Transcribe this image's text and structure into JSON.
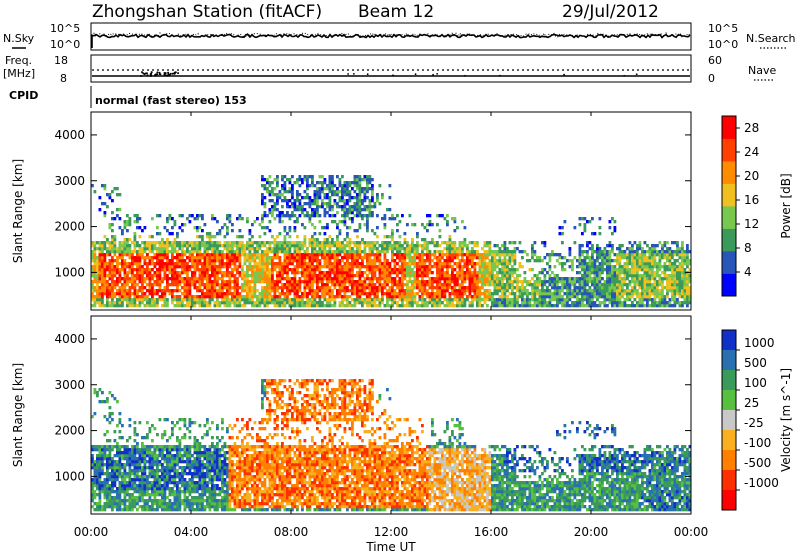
{
  "header": {
    "station_title": "Zhongshan Station (fitACF)",
    "beam_label": "Beam 12",
    "date": "29/Jul/2012"
  },
  "sky_panel": {
    "left_label": "N.Sky",
    "left_ticks": [
      "10^5",
      "10^0"
    ],
    "right_ticks": [
      "10^5",
      "10^0"
    ],
    "right_label": "N.Search"
  },
  "freq_panel": {
    "left_label_1": "Freq.",
    "left_label_2": "[MHz]",
    "left_ticks": [
      "18",
      "8"
    ],
    "right_ticks": [
      "60",
      "0"
    ],
    "right_label": "Nave"
  },
  "cpid": {
    "label": "CPID",
    "text": "normal (fast stereo) 153"
  },
  "x_axis": {
    "label": "Time UT",
    "ticks": [
      "00:00",
      "04:00",
      "08:00",
      "12:00",
      "16:00",
      "20:00",
      "00:00"
    ]
  },
  "chart_data": [
    {
      "type": "heatmap",
      "title": "Power",
      "ylabel": "Slant Range [km]",
      "xlabel": "Time UT",
      "x_ticks": [
        "00:00",
        "04:00",
        "08:00",
        "12:00",
        "16:00",
        "20:00",
        "00:00"
      ],
      "y_ticks": [
        1000,
        2000,
        3000,
        4000
      ],
      "ylim": [
        180,
        4500
      ],
      "xlim_hours": [
        0,
        24
      ],
      "colorbar": {
        "label": "Power [dB]",
        "ticks": [
          4,
          8,
          12,
          16,
          20,
          24,
          28
        ],
        "range": [
          0,
          30
        ],
        "colors": [
          "#0000ff",
          "#2855b8",
          "#3a9a5a",
          "#78c850",
          "#f0c020",
          "#ff8c00",
          "#ff4000",
          "#ff0000"
        ]
      }
    },
    {
      "type": "heatmap",
      "title": "Velocity",
      "ylabel": "Slant Range [km]",
      "xlabel": "Time UT",
      "x_ticks": [
        "00:00",
        "04:00",
        "08:00",
        "12:00",
        "16:00",
        "20:00",
        "00:00"
      ],
      "y_ticks": [
        1000,
        2000,
        3000,
        4000
      ],
      "ylim": [
        180,
        4500
      ],
      "xlim_hours": [
        0,
        24
      ],
      "colorbar": {
        "label": "Velocity [m s^-1]",
        "ticks": [
          "1000",
          "500",
          "100",
          "25",
          "-25",
          "-100",
          "-500",
          "-1000"
        ],
        "colors": [
          "#1030c8",
          "#2870b0",
          "#3a9a5a",
          "#58c040",
          "#c8c8c8",
          "#f8b020",
          "#ff8000",
          "#ff3000",
          "#ff0000"
        ]
      }
    }
  ]
}
